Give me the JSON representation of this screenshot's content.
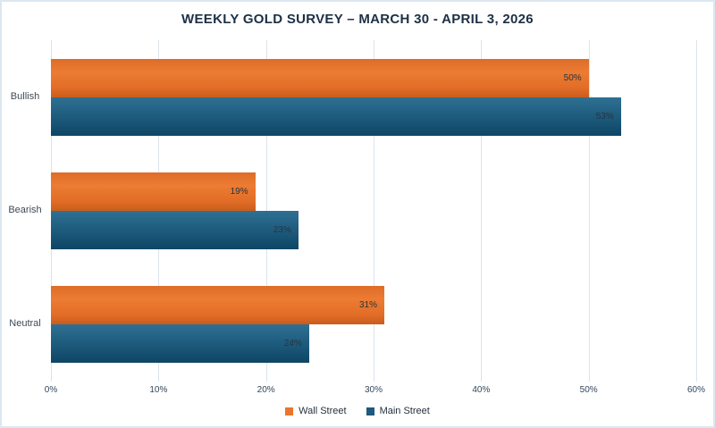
{
  "title": "WEEKLY GOLD SURVEY – MARCH 30 - APRIL 3, 2026",
  "colors": {
    "wall_street": "#e9762e",
    "main_street": "#1d5a7c",
    "title_text": "#1d3044",
    "axis_text": "#33475b",
    "category_text": "#3e4a55",
    "data_label_text": "#28333e",
    "gridline": "#d9e4ec",
    "frame_border": "#dce8f0",
    "background": "#ffffff"
  },
  "chart_data": {
    "type": "bar",
    "orientation": "horizontal",
    "title": "WEEKLY GOLD SURVEY – MARCH 30 - APRIL 3, 2026",
    "categories": [
      "Bullish",
      "Bearish",
      "Neutral"
    ],
    "series": [
      {
        "name": "Wall Street",
        "color": "#e9762e",
        "values": [
          50,
          19,
          31
        ],
        "data_labels": [
          "50%",
          "19%",
          "31%"
        ]
      },
      {
        "name": "Main Street",
        "color": "#1d5a7c",
        "values": [
          53,
          23,
          24
        ],
        "data_labels": [
          "53%",
          "23%",
          "24%"
        ]
      }
    ],
    "value_axis": {
      "min": 0,
      "max": 60,
      "tick_step": 10,
      "tick_labels": [
        "0%",
        "10%",
        "20%",
        "30%",
        "40%",
        "50%",
        "60%"
      ]
    },
    "grid": true,
    "legend_position": "bottom",
    "legend_entries": [
      "Wall Street",
      "Main Street"
    ]
  }
}
